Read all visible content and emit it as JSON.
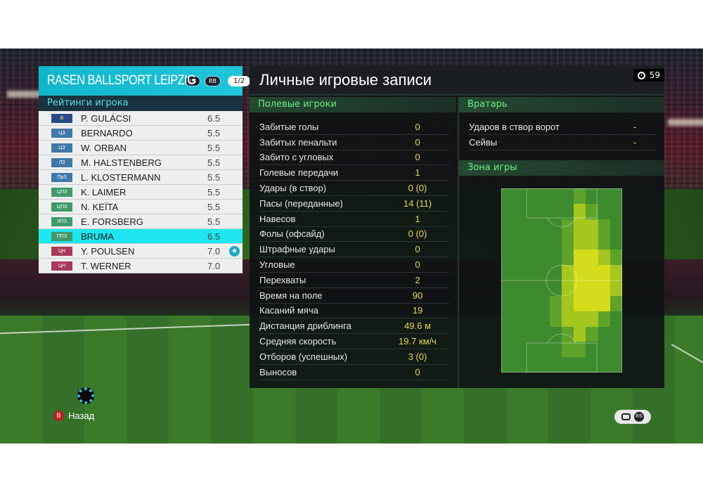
{
  "team": {
    "name": "RASEN BALLSPORT LEIPZIG",
    "tags": [
      "LB",
      "RB"
    ],
    "page": "1/2"
  },
  "ratings_title": "Рейтинги игрока",
  "players": [
    {
      "pos": "В",
      "name": "P. GULÁCSI",
      "rating": "6.5",
      "role": "gk"
    },
    {
      "pos": "ЦЗ",
      "name": "BERNARDO",
      "rating": "5.5",
      "role": "def"
    },
    {
      "pos": "ЦЗ",
      "name": "W. ORBAN",
      "rating": "5.5",
      "role": "def"
    },
    {
      "pos": "ЛЗ",
      "name": "M. HALSTENBERG",
      "rating": "5.5",
      "role": "def"
    },
    {
      "pos": "ПрЗ",
      "name": "L. KLOSTERMANN",
      "rating": "5.5",
      "role": "def"
    },
    {
      "pos": "ЦПЗ",
      "name": "K. LAIMER",
      "rating": "5.5",
      "role": "mid"
    },
    {
      "pos": "ЦПЗ",
      "name": "N. KEÏTA",
      "rating": "5.5",
      "role": "mid"
    },
    {
      "pos": "ЛПЗ",
      "name": "E. FORSBERG",
      "rating": "5.5",
      "role": "mid"
    },
    {
      "pos": "ППЗ",
      "name": "BRUMA",
      "rating": "6.5",
      "role": "mid",
      "selected": true
    },
    {
      "pos": "ЦН",
      "name": "Y. POULSEN",
      "rating": "7.0",
      "role": "fwd",
      "star": true
    },
    {
      "pos": "ЦН",
      "name": "T. WERNER",
      "rating": "7.0",
      "role": "fwd"
    }
  ],
  "main": {
    "title": "Личные игровые записи",
    "timer": "59",
    "field_players_heading": "Полевые игроки",
    "goalkeeper_heading": "Вратарь",
    "zone_heading": "Зона игры"
  },
  "field_stats": [
    {
      "label": "Забитые голы",
      "value": "0"
    },
    {
      "label": "Забитых пенальти",
      "value": "0"
    },
    {
      "label": "Забито с угловых",
      "value": "0"
    },
    {
      "label": "Голевые передачи",
      "value": "1"
    },
    {
      "label": "Удары (в створ)",
      "value": "0 (0)"
    },
    {
      "label": "Пасы (переданные)",
      "value": "14 (11)"
    },
    {
      "label": "Навесов",
      "value": "1"
    },
    {
      "label": "Фолы (офсайд)",
      "value": "0 (0)"
    },
    {
      "label": "Штрафные удары",
      "value": "0"
    },
    {
      "label": "Угловые",
      "value": "0"
    },
    {
      "label": "Перехваты",
      "value": "2"
    },
    {
      "label": "Время на поле",
      "value": "90"
    },
    {
      "label": "Касаний мяча",
      "value": "19"
    },
    {
      "label": "Дистанция дриблинга",
      "value": "49.6 м"
    },
    {
      "label": "Средняя скорость",
      "value": "19.7 км/ч"
    },
    {
      "label": "Отборов (успешных)",
      "value": "3 (0)"
    },
    {
      "label": "Выносов",
      "value": "0"
    }
  ],
  "gk_stats": [
    {
      "label": "Ударов в створ ворот",
      "value": "-"
    },
    {
      "label": "Сейвы",
      "value": "-"
    }
  ],
  "heatmap": {
    "columns": 10,
    "rows": 12,
    "intensity": [
      [
        0,
        0,
        0,
        0,
        0,
        0,
        1,
        0,
        0,
        0
      ],
      [
        0,
        0,
        0,
        0,
        0,
        0,
        2,
        1,
        0,
        0
      ],
      [
        0,
        0,
        0,
        0,
        0,
        1,
        2,
        2,
        1,
        0
      ],
      [
        0,
        0,
        0,
        0,
        0,
        1,
        2,
        2,
        1,
        0
      ],
      [
        0,
        0,
        0,
        0,
        0,
        1,
        3,
        3,
        2,
        1
      ],
      [
        0,
        0,
        0,
        0,
        0,
        2,
        3,
        3,
        3,
        2
      ],
      [
        0,
        0,
        0,
        0,
        0,
        2,
        3,
        3,
        3,
        2
      ],
      [
        0,
        0,
        0,
        0,
        1,
        2,
        3,
        3,
        3,
        1
      ],
      [
        0,
        0,
        0,
        0,
        1,
        2,
        2,
        2,
        1,
        0
      ],
      [
        0,
        0,
        0,
        0,
        0,
        1,
        2,
        1,
        0,
        0
      ],
      [
        0,
        0,
        0,
        0,
        0,
        1,
        1,
        0,
        0,
        0
      ],
      [
        0,
        0,
        0,
        0,
        0,
        0,
        0,
        0,
        0,
        0
      ]
    ],
    "colors": [
      "#3e8a2e",
      "#5fa22a",
      "#a4c61e",
      "#d4dc1c"
    ]
  },
  "hints": {
    "back_button_glyph": "B",
    "back_label": "Назад",
    "right_stick_glyph": "RS"
  }
}
